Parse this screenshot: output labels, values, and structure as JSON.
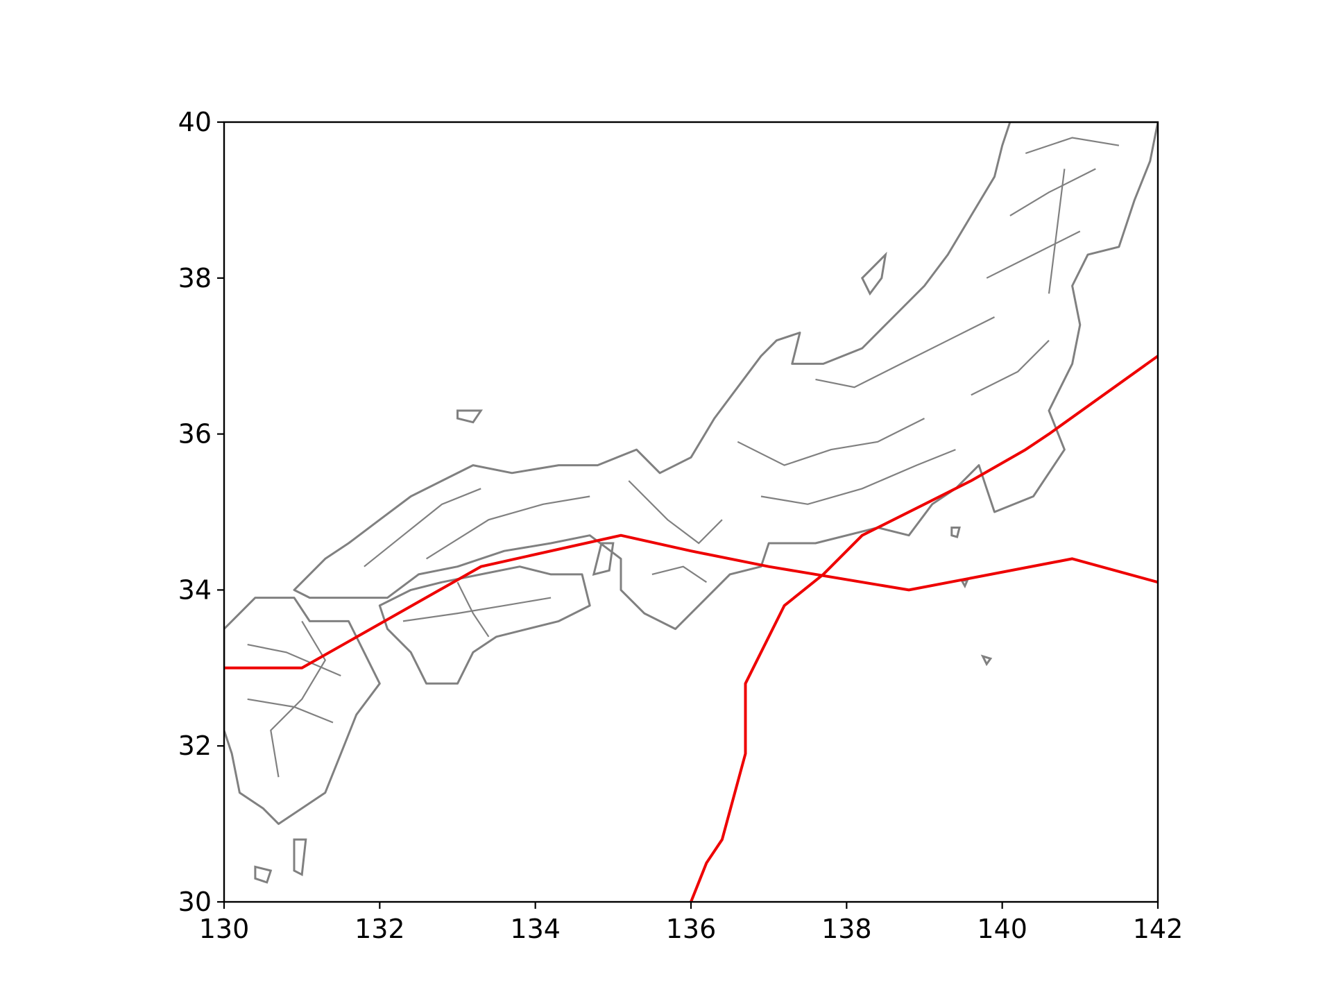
{
  "chart_data": {
    "type": "line",
    "title": "",
    "xlabel": "",
    "ylabel": "",
    "xlim": [
      130,
      142
    ],
    "ylim": [
      30,
      40
    ],
    "x_ticks": [
      130,
      132,
      134,
      136,
      138,
      140,
      142
    ],
    "y_ticks": [
      30,
      32,
      34,
      36,
      38,
      40
    ],
    "grid": false,
    "basemap": "Japan municipal boundaries (gray outlines)",
    "line_color": "#ee0000",
    "basemap_color": "#808080",
    "series": [
      {
        "points": [
          [
            130.0,
            33.0
          ],
          [
            131.0,
            33.0
          ],
          [
            133.3,
            34.3
          ],
          [
            135.1,
            34.7
          ],
          [
            136.0,
            34.5
          ],
          [
            137.0,
            34.3
          ],
          [
            138.8,
            34.0
          ],
          [
            140.9,
            34.4
          ],
          [
            142.0,
            34.1
          ]
        ]
      },
      {
        "points": [
          [
            136.0,
            30.0
          ],
          [
            136.2,
            30.5
          ],
          [
            136.4,
            30.8
          ],
          [
            136.7,
            31.9
          ],
          [
            136.7,
            32.8
          ],
          [
            137.2,
            33.8
          ],
          [
            137.7,
            34.2
          ],
          [
            138.2,
            34.7
          ],
          [
            139.0,
            35.1
          ],
          [
            139.6,
            35.4
          ],
          [
            140.3,
            35.8
          ],
          [
            140.6,
            36.0
          ],
          [
            142.0,
            37.0
          ]
        ]
      }
    ]
  }
}
